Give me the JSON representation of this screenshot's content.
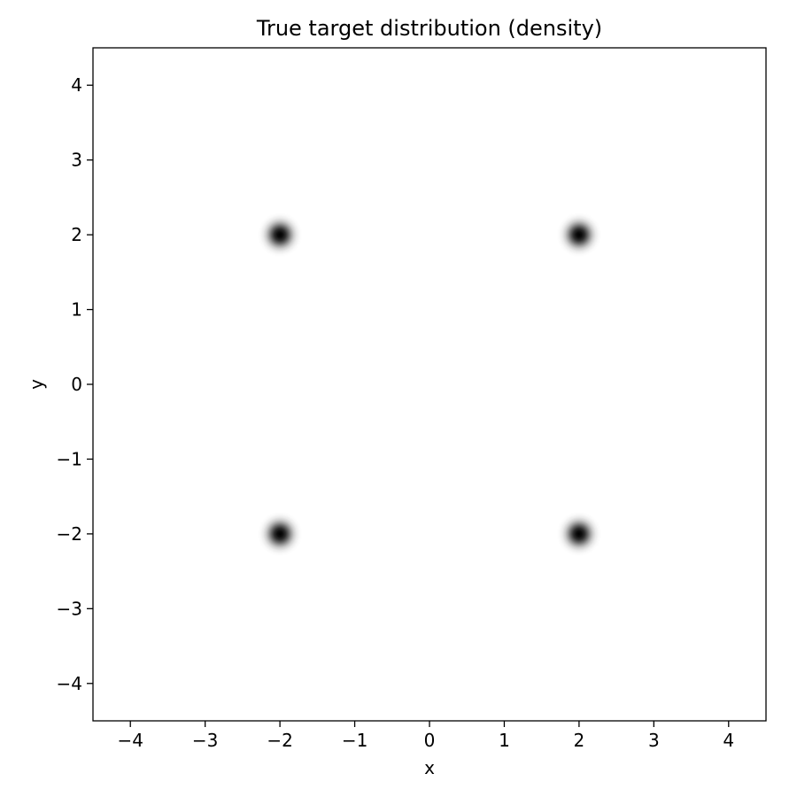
{
  "chart_data": {
    "type": "heatmap",
    "title": "True target distribution (density)",
    "xlabel": "x",
    "ylabel": "y",
    "xlim": [
      -4.5,
      4.5
    ],
    "ylim": [
      -4.5,
      4.5
    ],
    "x_ticks": [
      -4,
      -3,
      -2,
      -1,
      0,
      1,
      2,
      3,
      4
    ],
    "y_ticks": [
      -4,
      -3,
      -2,
      -1,
      0,
      1,
      2,
      3,
      4
    ],
    "x_tick_labels": [
      "−4",
      "−3",
      "−2",
      "−1",
      "0",
      "1",
      "2",
      "3",
      "4"
    ],
    "y_tick_labels": [
      "−4",
      "−3",
      "−2",
      "−1",
      "0",
      "1",
      "2",
      "3",
      "4"
    ],
    "grid": false,
    "colormap": "greys",
    "modes": [
      {
        "x": -2,
        "y": 2,
        "std": 0.1
      },
      {
        "x": 2,
        "y": 2,
        "std": 0.1
      },
      {
        "x": -2,
        "y": -2,
        "std": 0.1
      },
      {
        "x": 2,
        "y": -2,
        "std": 0.1
      }
    ]
  }
}
